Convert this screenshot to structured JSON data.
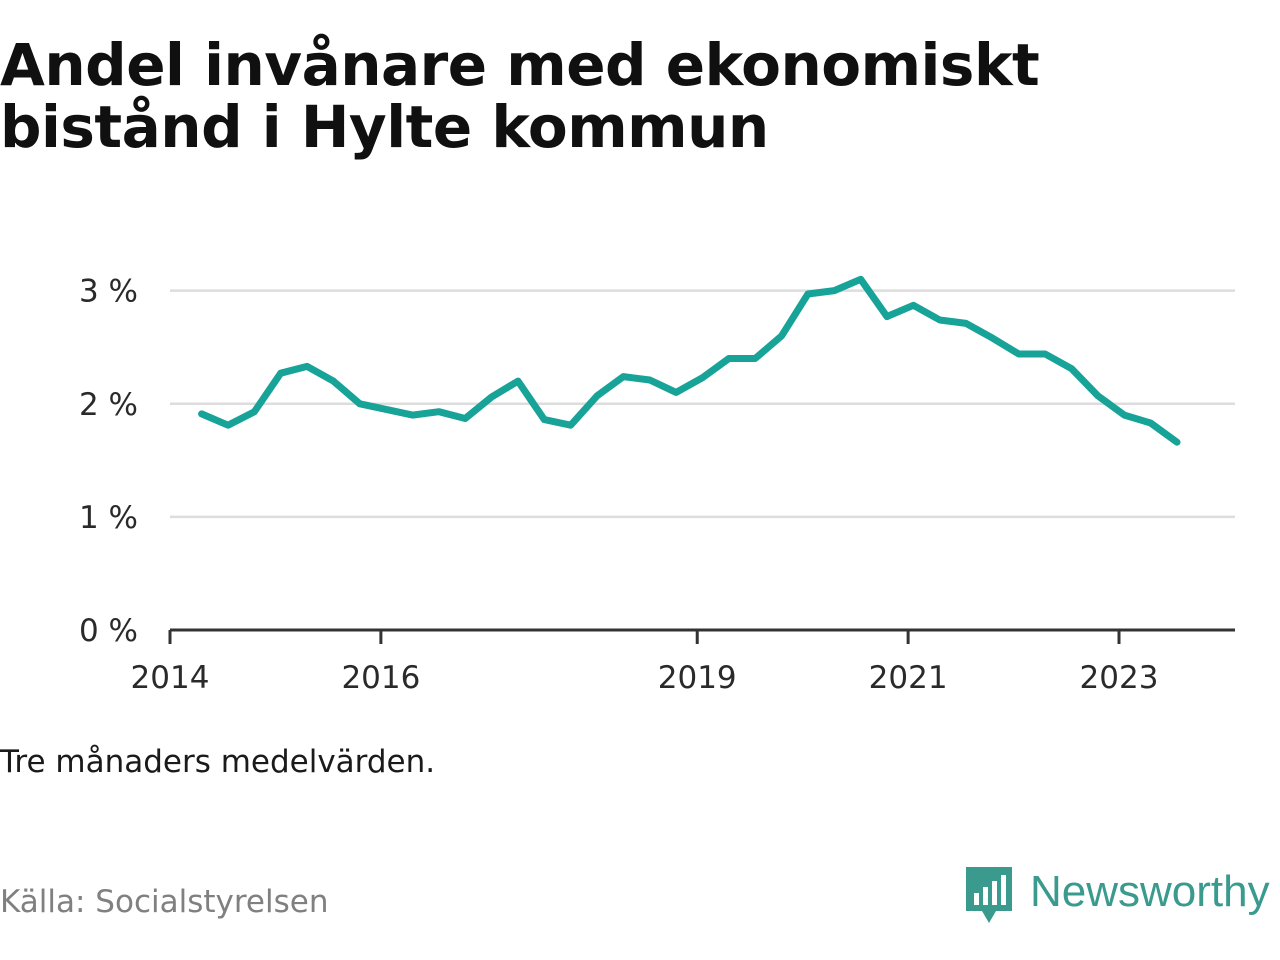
{
  "title_lines": [
    "Andel invånare med ekonomiskt",
    "bistånd i Hylte kommun"
  ],
  "note": "Tre månaders medelvärden.",
  "source": "Källa: Socialstyrelsen",
  "brand": "Newsworthy",
  "colors": {
    "line": "#17a398",
    "grid": "#dddddd",
    "axis": "#333333",
    "brand": "#3a9a8e"
  },
  "chart_data": {
    "type": "line",
    "title": "Andel invånare med ekonomiskt bistånd i Hylte kommun",
    "xlabel": "",
    "ylabel": "",
    "xlim": [
      2014.0,
      2024.1
    ],
    "ylim": [
      0,
      3.2
    ],
    "grid": true,
    "x_ticks": [
      2014,
      2016,
      2019,
      2021,
      2023
    ],
    "y_ticks": [
      0,
      1,
      2,
      3
    ],
    "y_tick_labels": [
      "0 %",
      "1 %",
      "2 %",
      "3 %"
    ],
    "series": [
      {
        "x": [
          2014.3,
          2014.55,
          2014.8,
          2015.05,
          2015.3,
          2015.55,
          2015.8,
          2016.05,
          2016.3,
          2016.55,
          2016.8,
          2017.05,
          2017.3,
          2017.55,
          2017.8,
          2018.05,
          2018.3,
          2018.55,
          2018.8,
          2019.05,
          2019.3,
          2019.55,
          2019.8,
          2020.05,
          2020.3,
          2020.55,
          2020.8,
          2021.05,
          2021.3,
          2021.55,
          2021.8,
          2022.05,
          2022.3,
          2022.55,
          2022.8,
          2023.05,
          2023.3,
          2023.55
        ],
        "values": [
          1.91,
          1.81,
          1.93,
          2.27,
          2.33,
          2.2,
          2.0,
          1.95,
          1.9,
          1.93,
          1.87,
          2.06,
          2.2,
          1.86,
          1.81,
          2.07,
          2.24,
          2.21,
          2.1,
          2.23,
          2.4,
          2.4,
          2.6,
          2.97,
          3.0,
          3.1,
          2.77,
          2.87,
          2.74,
          2.71,
          2.58,
          2.44,
          2.44,
          2.31,
          2.07,
          1.9,
          1.83,
          1.66
        ]
      }
    ]
  }
}
